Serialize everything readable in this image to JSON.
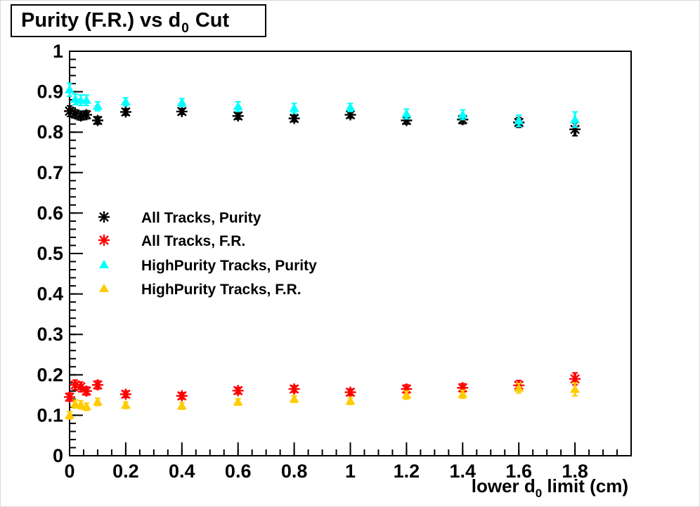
{
  "page": {
    "background": "#ffffff",
    "frame_color": "#000000"
  },
  "title": {
    "main": "Purity (F.R.) vs d",
    "sub": "0",
    "end": " Cut"
  },
  "axes": {
    "x": {
      "label_main": "lower d",
      "label_sub": "0",
      "label_end": " limit (cm)",
      "major_tick_labels": [
        "0",
        "0.2",
        "0.4",
        "0.6",
        "0.8",
        "1",
        "1.2",
        "1.4",
        "1.6",
        "1.8"
      ],
      "major_tick_values": [
        0,
        0.2,
        0.4,
        0.6,
        0.8,
        1.0,
        1.2,
        1.4,
        1.6,
        1.8
      ],
      "minor_step": 0.05
    },
    "y": {
      "major_tick_labels": [
        "0",
        "0.1",
        "0.2",
        "0.3",
        "0.4",
        "0.5",
        "0.6",
        "0.7",
        "0.8",
        "0.9",
        "1"
      ],
      "major_tick_values": [
        0,
        0.1,
        0.2,
        0.3,
        0.4,
        0.5,
        0.6,
        0.7,
        0.8,
        0.9,
        1.0
      ],
      "minor_step": 0.02
    }
  },
  "legend": {
    "entries": [
      {
        "label": "All Tracks, Purity"
      },
      {
        "label": "All Tracks, F.R."
      },
      {
        "label": "HighPurity Tracks, Purity"
      },
      {
        "label": "HighPurity Tracks, F.R."
      }
    ]
  },
  "chart_data": {
    "type": "scatter",
    "title": "Purity (F.R.) vs d0 Cut",
    "xlabel": "lower d0 limit (cm)",
    "ylabel": "",
    "xlim": [
      0,
      2.0
    ],
    "ylim": [
      0,
      1.0
    ],
    "grid": false,
    "legend_position": "center-left",
    "x": [
      0,
      0.02,
      0.04,
      0.06,
      0.1,
      0.2,
      0.4,
      0.6,
      0.8,
      1.0,
      1.2,
      1.4,
      1.6,
      1.8
    ],
    "series": [
      {
        "name": "All Tracks, Purity",
        "marker": "asterisk",
        "color": "#000000",
        "values": [
          0.852,
          0.845,
          0.84,
          0.843,
          0.829,
          0.85,
          0.851,
          0.84,
          0.834,
          0.843,
          0.829,
          0.831,
          0.824,
          0.807
        ],
        "errors": [
          0.013,
          0.01,
          0.01,
          0.01,
          0.009,
          0.008,
          0.007,
          0.008,
          0.008,
          0.008,
          0.009,
          0.01,
          0.012,
          0.016
        ]
      },
      {
        "name": "All Tracks, F.R.",
        "marker": "asterisk",
        "color": "#ff0000",
        "values": [
          0.145,
          0.175,
          0.17,
          0.16,
          0.175,
          0.152,
          0.148,
          0.161,
          0.165,
          0.157,
          0.165,
          0.168,
          0.174,
          0.19
        ],
        "errors": [
          0.01,
          0.012,
          0.012,
          0.01,
          0.01,
          0.008,
          0.008,
          0.008,
          0.008,
          0.008,
          0.01,
          0.01,
          0.012,
          0.015
        ]
      },
      {
        "name": "HighPurity Tracks, Purity",
        "marker": "triangle",
        "color": "#00ffff",
        "values": [
          0.905,
          0.881,
          0.879,
          0.879,
          0.864,
          0.875,
          0.873,
          0.863,
          0.859,
          0.861,
          0.845,
          0.843,
          0.828,
          0.831
        ],
        "errors": [
          0.016,
          0.013,
          0.013,
          0.013,
          0.011,
          0.01,
          0.01,
          0.012,
          0.012,
          0.01,
          0.012,
          0.012,
          0.014,
          0.019
        ]
      },
      {
        "name": "HighPurity Tracks, F.R.",
        "marker": "triangle",
        "color": "#ffcc00",
        "values": [
          0.1,
          0.128,
          0.126,
          0.121,
          0.133,
          0.125,
          0.123,
          0.133,
          0.14,
          0.135,
          0.15,
          0.152,
          0.167,
          0.164
        ],
        "errors": [
          0.009,
          0.01,
          0.01,
          0.009,
          0.009,
          0.008,
          0.008,
          0.008,
          0.008,
          0.008,
          0.01,
          0.01,
          0.012,
          0.016
        ]
      }
    ]
  }
}
